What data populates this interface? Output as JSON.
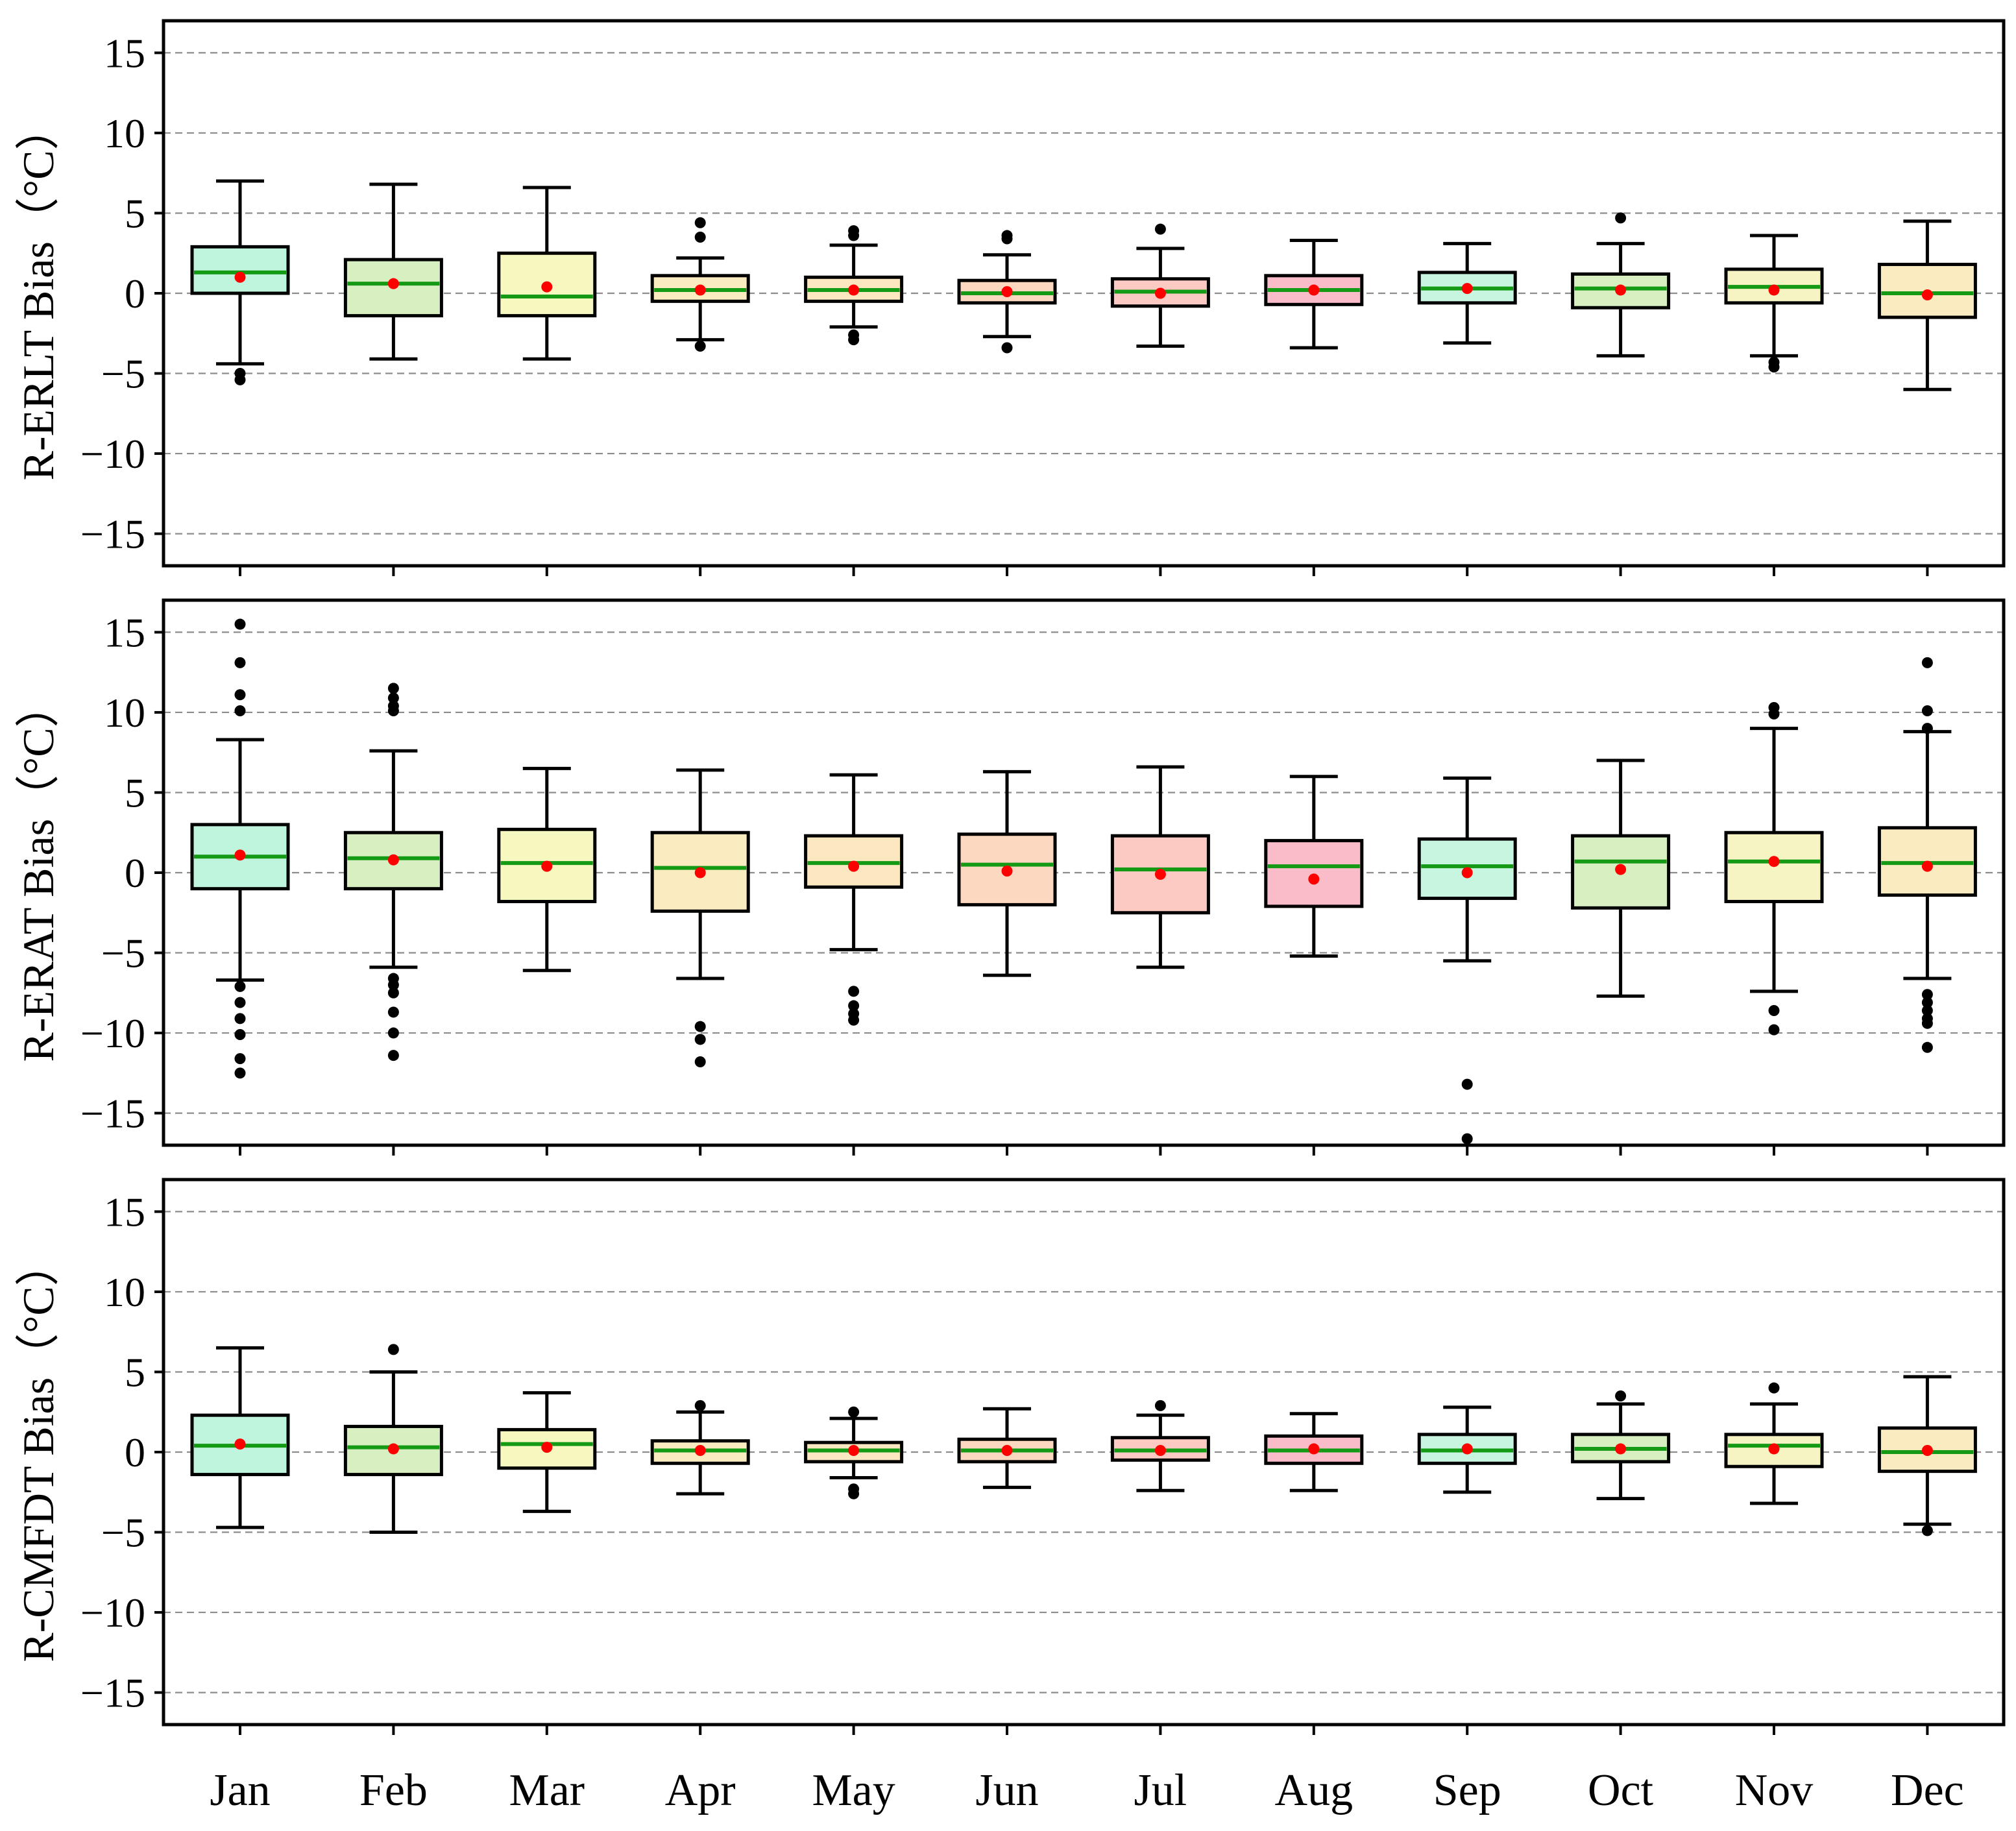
{
  "chart_data": {
    "type": "boxplot",
    "categories": [
      "Jan",
      "Feb",
      "Mar",
      "Apr",
      "May",
      "Jun",
      "Jul",
      "Aug",
      "Sep",
      "Oct",
      "Nov",
      "Dec"
    ],
    "y_ticks": [
      15,
      10,
      5,
      0,
      -5,
      -10,
      -15
    ],
    "y_tick_labels": [
      "15",
      "10",
      "5",
      "0",
      "−5",
      "−10",
      "−15"
    ],
    "ylim": [
      -17,
      17
    ],
    "grid": "horizontal-dashed",
    "box_colors": [
      "#bff5dc",
      "#d8efc2",
      "#f7f7c0",
      "#fbebc0",
      "#fbe8c0",
      "#fcd8c0",
      "#fcc9c3",
      "#fbbcc9",
      "#c7f5e0",
      "#d8efc2",
      "#f7f4c4",
      "#fbebc0"
    ],
    "median_color": "#159a15",
    "mean_color": "#ff0000",
    "outlier_color": "#000000",
    "panels": [
      {
        "ylabel": "R-ERLT Bias（°C）",
        "series": [
          {
            "month": "Jan",
            "whisker_low": -4.4,
            "q1": 0.0,
            "median": 1.3,
            "q3": 2.9,
            "whisker_high": 7.0,
            "mean": 1.0,
            "outliers": [
              -5.0,
              -5.4
            ]
          },
          {
            "month": "Feb",
            "whisker_low": -4.1,
            "q1": -1.4,
            "median": 0.6,
            "q3": 2.1,
            "whisker_high": 6.8,
            "mean": 0.6,
            "outliers": []
          },
          {
            "month": "Mar",
            "whisker_low": -4.1,
            "q1": -1.4,
            "median": -0.2,
            "q3": 2.5,
            "whisker_high": 6.6,
            "mean": 0.4,
            "outliers": []
          },
          {
            "month": "Apr",
            "whisker_low": -2.9,
            "q1": -0.5,
            "median": 0.2,
            "q3": 1.1,
            "whisker_high": 2.2,
            "mean": 0.2,
            "outliers": [
              4.4,
              3.5,
              -3.3
            ]
          },
          {
            "month": "May",
            "whisker_low": -2.1,
            "q1": -0.5,
            "median": 0.2,
            "q3": 1.0,
            "whisker_high": 3.0,
            "mean": 0.2,
            "outliers": [
              3.9,
              3.6,
              -2.6,
              -2.9
            ]
          },
          {
            "month": "Jun",
            "whisker_low": -2.7,
            "q1": -0.6,
            "median": 0.0,
            "q3": 0.8,
            "whisker_high": 2.4,
            "mean": 0.1,
            "outliers": [
              3.6,
              3.4,
              -3.4
            ]
          },
          {
            "month": "Jul",
            "whisker_low": -3.3,
            "q1": -0.8,
            "median": 0.1,
            "q3": 0.9,
            "whisker_high": 2.8,
            "mean": 0.0,
            "outliers": [
              4.0
            ]
          },
          {
            "month": "Aug",
            "whisker_low": -3.4,
            "q1": -0.7,
            "median": 0.2,
            "q3": 1.1,
            "whisker_high": 3.3,
            "mean": 0.2,
            "outliers": []
          },
          {
            "month": "Sep",
            "whisker_low": -3.1,
            "q1": -0.6,
            "median": 0.3,
            "q3": 1.3,
            "whisker_high": 3.1,
            "mean": 0.3,
            "outliers": []
          },
          {
            "month": "Oct",
            "whisker_low": -3.9,
            "q1": -0.9,
            "median": 0.3,
            "q3": 1.2,
            "whisker_high": 3.1,
            "mean": 0.2,
            "outliers": [
              4.7
            ]
          },
          {
            "month": "Nov",
            "whisker_low": -3.9,
            "q1": -0.6,
            "median": 0.4,
            "q3": 1.5,
            "whisker_high": 3.6,
            "mean": 0.2,
            "outliers": [
              -4.3,
              -4.6
            ]
          },
          {
            "month": "Dec",
            "whisker_low": -6.0,
            "q1": -1.5,
            "median": 0.0,
            "q3": 1.8,
            "whisker_high": 4.5,
            "mean": -0.1,
            "outliers": []
          }
        ]
      },
      {
        "ylabel": "R-ERAT Bias（°C）",
        "series": [
          {
            "month": "Jan",
            "whisker_low": -6.7,
            "q1": -1.0,
            "median": 1.0,
            "q3": 3.0,
            "whisker_high": 8.3,
            "mean": 1.1,
            "outliers": [
              15.5,
              13.1,
              11.1,
              10.1,
              -7.1,
              -8.1,
              -9.1,
              -10.1,
              -11.6,
              -12.5
            ]
          },
          {
            "month": "Feb",
            "whisker_low": -5.9,
            "q1": -1.0,
            "median": 0.9,
            "q3": 2.5,
            "whisker_high": 7.6,
            "mean": 0.8,
            "outliers": [
              11.5,
              10.9,
              10.4,
              10.1,
              -6.6,
              -7.0,
              -7.5,
              -8.7,
              -10.0,
              -11.4
            ]
          },
          {
            "month": "Mar",
            "whisker_low": -6.1,
            "q1": -1.8,
            "median": 0.6,
            "q3": 2.7,
            "whisker_high": 6.5,
            "mean": 0.4,
            "outliers": []
          },
          {
            "month": "Apr",
            "whisker_low": -6.6,
            "q1": -2.4,
            "median": 0.3,
            "q3": 2.5,
            "whisker_high": 6.4,
            "mean": 0.0,
            "outliers": [
              -9.6,
              -10.4,
              -11.8
            ]
          },
          {
            "month": "May",
            "whisker_low": -4.8,
            "q1": -0.9,
            "median": 0.6,
            "q3": 2.3,
            "whisker_high": 6.1,
            "mean": 0.4,
            "outliers": [
              -7.4,
              -8.3,
              -8.8,
              -9.2
            ]
          },
          {
            "month": "Jun",
            "whisker_low": -6.4,
            "q1": -2.0,
            "median": 0.5,
            "q3": 2.4,
            "whisker_high": 6.3,
            "mean": 0.1,
            "outliers": []
          },
          {
            "month": "Jul",
            "whisker_low": -5.9,
            "q1": -2.5,
            "median": 0.2,
            "q3": 2.3,
            "whisker_high": 6.6,
            "mean": -0.1,
            "outliers": []
          },
          {
            "month": "Aug",
            "whisker_low": -5.2,
            "q1": -2.1,
            "median": 0.4,
            "q3": 2.0,
            "whisker_high": 6.0,
            "mean": -0.4,
            "outliers": []
          },
          {
            "month": "Sep",
            "whisker_low": -5.5,
            "q1": -1.6,
            "median": 0.4,
            "q3": 2.1,
            "whisker_high": 5.9,
            "mean": 0.0,
            "outliers": [
              -13.2,
              -16.6
            ]
          },
          {
            "month": "Oct",
            "whisker_low": -7.7,
            "q1": -2.2,
            "median": 0.7,
            "q3": 2.3,
            "whisker_high": 7.0,
            "mean": 0.2,
            "outliers": []
          },
          {
            "month": "Nov",
            "whisker_low": -7.4,
            "q1": -1.8,
            "median": 0.7,
            "q3": 2.5,
            "whisker_high": 9.0,
            "mean": 0.7,
            "outliers": [
              10.3,
              9.9,
              -8.6,
              -9.8
            ]
          },
          {
            "month": "Dec",
            "whisker_low": -6.6,
            "q1": -1.4,
            "median": 0.6,
            "q3": 2.8,
            "whisker_high": 8.8,
            "mean": 0.4,
            "outliers": [
              13.1,
              10.1,
              9.0,
              -7.6,
              -8.1,
              -8.6,
              -9.1,
              -9.4,
              -10.9
            ]
          }
        ]
      },
      {
        "ylabel": "R-CMFDT Bias（°C）",
        "series": [
          {
            "month": "Jan",
            "whisker_low": -4.7,
            "q1": -1.4,
            "median": 0.4,
            "q3": 2.3,
            "whisker_high": 6.5,
            "mean": 0.5,
            "outliers": []
          },
          {
            "month": "Feb",
            "whisker_low": -5.0,
            "q1": -1.4,
            "median": 0.3,
            "q3": 1.6,
            "whisker_high": 5.0,
            "mean": 0.2,
            "outliers": [
              6.4
            ]
          },
          {
            "month": "Mar",
            "whisker_low": -3.7,
            "q1": -1.0,
            "median": 0.5,
            "q3": 1.4,
            "whisker_high": 3.7,
            "mean": 0.3,
            "outliers": []
          },
          {
            "month": "Apr",
            "whisker_low": -2.6,
            "q1": -0.7,
            "median": 0.1,
            "q3": 0.7,
            "whisker_high": 2.5,
            "mean": 0.1,
            "outliers": [
              2.9
            ]
          },
          {
            "month": "May",
            "whisker_low": -1.6,
            "q1": -0.6,
            "median": 0.1,
            "q3": 0.6,
            "whisker_high": 2.1,
            "mean": 0.1,
            "outliers": [
              2.5,
              -2.3,
              -2.6
            ]
          },
          {
            "month": "Jun",
            "whisker_low": -2.2,
            "q1": -0.6,
            "median": 0.1,
            "q3": 0.8,
            "whisker_high": 2.7,
            "mean": 0.1,
            "outliers": []
          },
          {
            "month": "Jul",
            "whisker_low": -2.4,
            "q1": -0.5,
            "median": 0.1,
            "q3": 0.9,
            "whisker_high": 2.3,
            "mean": 0.1,
            "outliers": [
              2.9
            ]
          },
          {
            "month": "Aug",
            "whisker_low": -2.4,
            "q1": -0.7,
            "median": 0.1,
            "q3": 1.0,
            "whisker_high": 2.4,
            "mean": 0.2,
            "outliers": []
          },
          {
            "month": "Sep",
            "whisker_low": -2.5,
            "q1": -0.7,
            "median": 0.1,
            "q3": 1.1,
            "whisker_high": 2.8,
            "mean": 0.2,
            "outliers": []
          },
          {
            "month": "Oct",
            "whisker_low": -2.9,
            "q1": -0.6,
            "median": 0.2,
            "q3": 1.1,
            "whisker_high": 3.0,
            "mean": 0.2,
            "outliers": [
              3.5
            ]
          },
          {
            "month": "Nov",
            "whisker_low": -3.2,
            "q1": -0.9,
            "median": 0.4,
            "q3": 1.1,
            "whisker_high": 3.0,
            "mean": 0.2,
            "outliers": [
              4.0
            ]
          },
          {
            "month": "Dec",
            "whisker_low": -4.5,
            "q1": -1.2,
            "median": 0.0,
            "q3": 1.5,
            "whisker_high": 4.7,
            "mean": 0.1,
            "outliers": [
              -4.9
            ]
          }
        ]
      }
    ]
  }
}
